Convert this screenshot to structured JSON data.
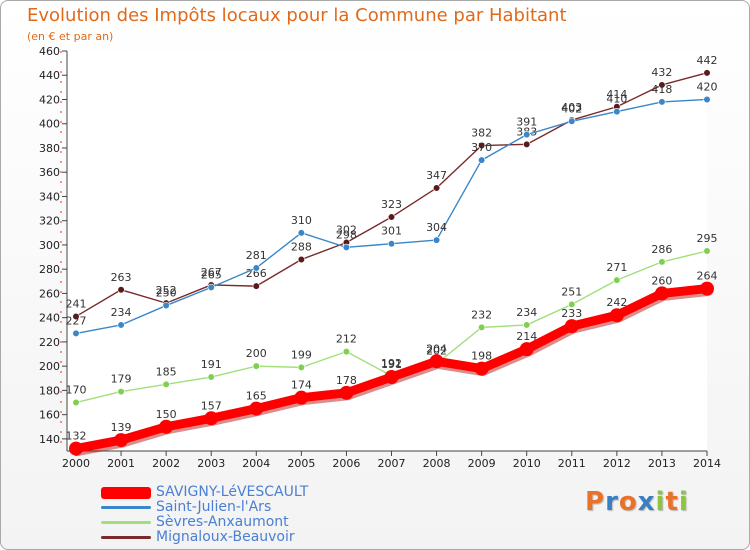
{
  "header": {
    "title": "Evolution des Impôts locaux pour la Commune par Habitant",
    "subtitle": "(en € et par an)"
  },
  "colors": {
    "title": "#e06a1b",
    "legend_text": "#4a7fd4"
  },
  "logo": {
    "letters": [
      "P",
      "r",
      "o",
      "x",
      "i",
      "t",
      "i"
    ],
    "letter_colors": [
      "#e8722a",
      "#3a7fc4",
      "#e8722a",
      "#3a7fc4",
      "#8cc63f",
      "#e8722a",
      "#8cc63f"
    ]
  },
  "chart_data": {
    "type": "line",
    "title": "Evolution des Impôts locaux pour la Commune par Habitant",
    "subtitle": "(en € et par an)",
    "xlabel": "",
    "ylabel": "",
    "x": [
      2000,
      2001,
      2002,
      2003,
      2004,
      2005,
      2006,
      2007,
      2008,
      2009,
      2010,
      2011,
      2012,
      2013,
      2014
    ],
    "ylim": [
      130,
      460
    ],
    "yticks": [
      140,
      160,
      180,
      200,
      220,
      240,
      260,
      280,
      300,
      320,
      340,
      360,
      380,
      400,
      420,
      440,
      460
    ],
    "grid": false,
    "legend_position": "bottom-left",
    "series": [
      {
        "name": "Mignaloux-Beauvoir",
        "color": "#7a2a2a",
        "marker_color": "#5a1a1a",
        "emphasis": false,
        "values": [
          241,
          263,
          252,
          267,
          266,
          288,
          302,
          323,
          347,
          382,
          383,
          403,
          414,
          432,
          442
        ]
      },
      {
        "name": "Saint-Julien-l'Ars",
        "color": "#3a86c8",
        "marker_color": "#3a86c8",
        "emphasis": false,
        "values": [
          227,
          234,
          250,
          265,
          281,
          310,
          298,
          301,
          304,
          370,
          391,
          402,
          410,
          418,
          420
        ]
      },
      {
        "name": "Sèvres-Anxaumont",
        "color": "#9fe07a",
        "marker_color": "#7fd050",
        "emphasis": false,
        "values": [
          170,
          179,
          185,
          191,
          200,
          199,
          212,
          192,
          202,
          232,
          234,
          251,
          271,
          286,
          295
        ]
      },
      {
        "name": "SAVIGNY-LéVESCAULT",
        "color": "#ff0000",
        "marker_color": "#ff0000",
        "emphasis": true,
        "values": [
          132,
          139,
          150,
          157,
          165,
          174,
          178,
          191,
          204,
          198,
          214,
          233,
          242,
          260,
          264
        ]
      }
    ],
    "legend_order": [
      "SAVIGNY-LéVESCAULT",
      "Saint-Julien-l'Ars",
      "Sèvres-Anxaumont",
      "Mignaloux-Beauvoir"
    ]
  }
}
